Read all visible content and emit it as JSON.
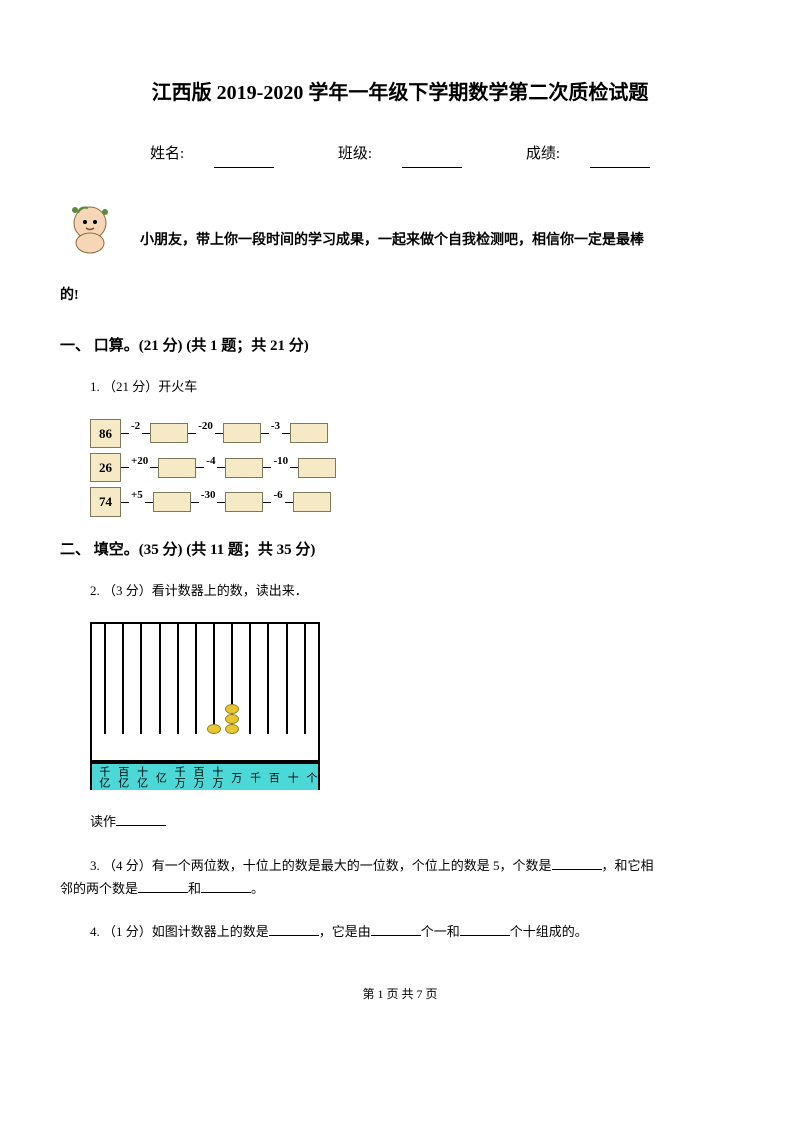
{
  "title": "江西版 2019-2020 学年一年级下学期数学第二次质检试题",
  "info": {
    "name_label": "姓名:",
    "class_label": "班级:",
    "score_label": "成绩:"
  },
  "intro": {
    "text": "小朋友，带上你一段时间的学习成果，一起来做个自我检测吧，相信你一定是最棒",
    "suffix": "的!"
  },
  "section1": {
    "title": "一、 口算。(21 分)  (共 1 题；共 21 分)",
    "q1": "1.   （21 分）开火车",
    "trains": [
      {
        "start": "86",
        "ops": [
          "-2",
          "-20",
          "-3"
        ]
      },
      {
        "start": "26",
        "ops": [
          "+20",
          "-4",
          "-10"
        ]
      },
      {
        "start": "74",
        "ops": [
          "+5",
          "-30",
          "-6"
        ]
      }
    ]
  },
  "section2": {
    "title": "二、 填空。(35 分)  (共 11 题；共 35 分)",
    "q2": "2.   （3 分）看计数器上的数，读出来．",
    "abacus_labels": [
      "千亿",
      "百亿",
      "十亿",
      "亿",
      "千万",
      "百万",
      "十万",
      "万",
      "千",
      "百",
      "十",
      "个"
    ],
    "abacus_beads": {
      "wan": 3,
      "shiwan": 1
    },
    "q2_answer": "读作",
    "q3": "3.    （4 分）有一个两位数，十位上的数是最大的一位数，个位上的数是 5，个数是",
    "q3_suffix1": "，和它相",
    "q3_cont": "邻的两个数是",
    "q3_and": "和",
    "q3_end": "。",
    "q4": "4.   （1 分）如图计数器上的数是",
    "q4_mid1": "，它是由",
    "q4_mid2": "个一和",
    "q4_end": "个十组成的。"
  },
  "footer": "第 1 页 共 7 页",
  "colors": {
    "background": "#ffffff",
    "text": "#000000",
    "train_box": "#f5eac5",
    "train_border": "#7a7a5a",
    "bead_fill": "#e8c632",
    "bead_border": "#9a8020",
    "abacus_label_bg": "#4dd8d8"
  }
}
